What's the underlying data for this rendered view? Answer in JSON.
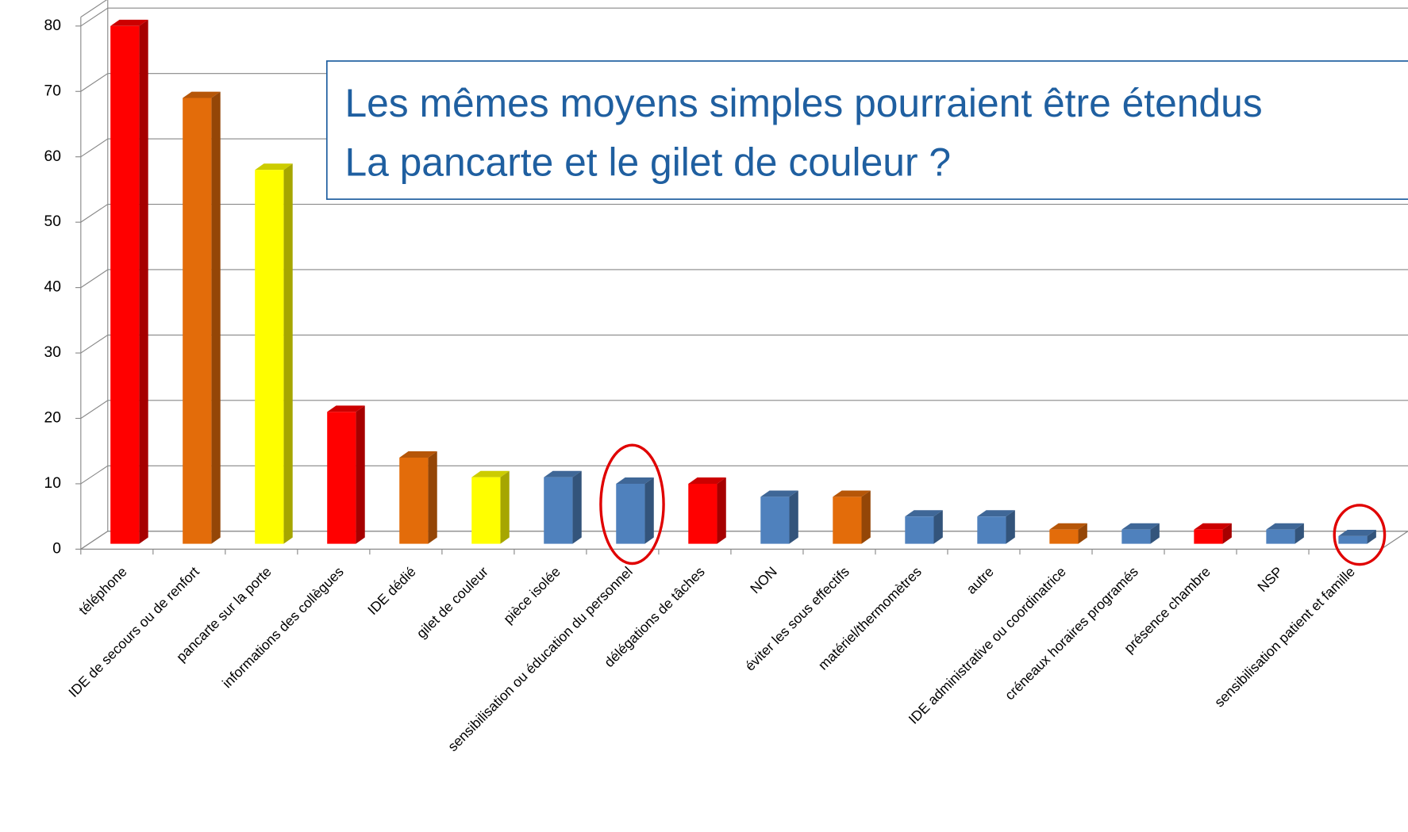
{
  "chart_data": {
    "type": "bar",
    "categories": [
      "téléphone",
      "IDE de secours ou de renfort",
      "pancarte sur la porte",
      "informations des collègues",
      "IDE dédié",
      "gilet de couleur",
      "pièce isolée",
      "sensibilisation ou éducation du personnel",
      "délégations de tâches",
      "NON",
      "éviter les sous effectifs",
      "matériel/thermomètres",
      "autre",
      "IDE administrative ou coordinatrice",
      "créneaux horaires programés",
      "présence chambre",
      "NSP",
      "sensibilisation patient et famille"
    ],
    "values": [
      80,
      69,
      58,
      21,
      14,
      11,
      11,
      10,
      10,
      8,
      8,
      5,
      5,
      3,
      3,
      3,
      3,
      2
    ],
    "colors": [
      "#ff0000",
      "#e36c0a",
      "#ffff00",
      "#ff0000",
      "#e36c0a",
      "#ffff00",
      "#4f81bd",
      "#4f81bd",
      "#ff0000",
      "#4f81bd",
      "#e36c0a",
      "#4f81bd",
      "#4f81bd",
      "#e36c0a",
      "#4f81bd",
      "#ff0000",
      "#4f81bd",
      "#4f81bd"
    ],
    "ylim": [
      0,
      80
    ],
    "yticks": [
      0,
      10,
      20,
      30,
      40,
      50,
      60,
      70,
      80
    ],
    "grid": true,
    "annotations": [
      "Les mêmes moyens simples pourraient être étendus",
      "La pancarte et le gilet de couleur ?"
    ]
  }
}
